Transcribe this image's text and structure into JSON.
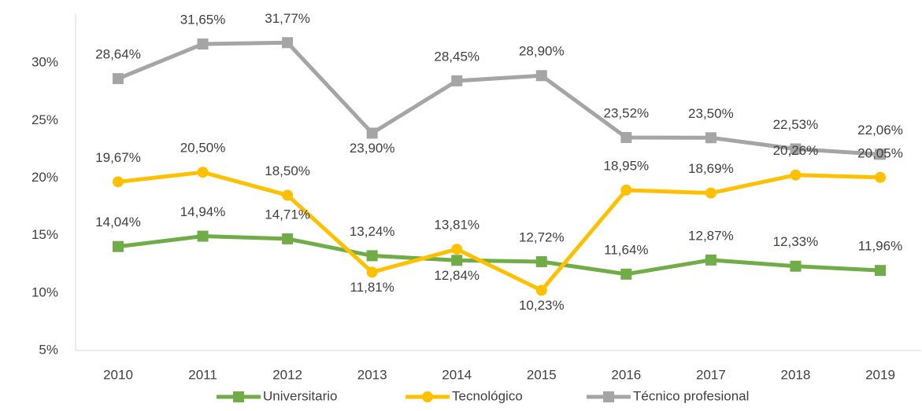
{
  "chart_data": {
    "type": "line",
    "categories": [
      "2010",
      "2011",
      "2012",
      "2013",
      "2014",
      "2015",
      "2016",
      "2017",
      "2018",
      "2019"
    ],
    "series": [
      {
        "name": "Universitario",
        "color": "#70ad47",
        "marker": "square",
        "values": [
          14.04,
          14.94,
          14.71,
          13.24,
          12.84,
          12.72,
          11.64,
          12.87,
          12.33,
          11.96
        ],
        "value_labels": [
          "14,04%",
          "14,94%",
          "14,71%",
          "13,24%",
          "12,84%",
          "12,72%",
          "11,64%",
          "12,87%",
          "12,33%",
          "11,96%"
        ]
      },
      {
        "name": "Tecnológico",
        "color": "#ffc000",
        "marker": "circle",
        "values": [
          19.67,
          20.5,
          18.5,
          11.81,
          13.81,
          10.23,
          18.95,
          18.69,
          20.26,
          20.05
        ],
        "value_labels": [
          "19,67%",
          "20,50%",
          "18,50%",
          "11,81%",
          "13,81%",
          "10,23%",
          "18,95%",
          "18,69%",
          "20,26%",
          "20,05%"
        ]
      },
      {
        "name": "Técnico profesional",
        "color": "#a5a5a5",
        "marker": "square",
        "values": [
          28.64,
          31.65,
          31.77,
          23.9,
          28.45,
          28.9,
          23.52,
          23.5,
          22.53,
          22.06
        ],
        "value_labels": [
          "28,64%",
          "31,65%",
          "31,77%",
          "23,90%",
          "28,45%",
          "28,90%",
          "23,52%",
          "23,50%",
          "22,53%",
          "22,06%"
        ]
      }
    ],
    "ylim": [
      5,
      35
    ],
    "yticks": [
      {
        "value": 5,
        "label": "5%"
      },
      {
        "value": 10,
        "label": "10%"
      },
      {
        "value": 15,
        "label": "15%"
      },
      {
        "value": 20,
        "label": "20%"
      },
      {
        "value": 25,
        "label": "25%"
      },
      {
        "value": 30,
        "label": "30%"
      }
    ],
    "grid": false,
    "legend": "bottom"
  }
}
